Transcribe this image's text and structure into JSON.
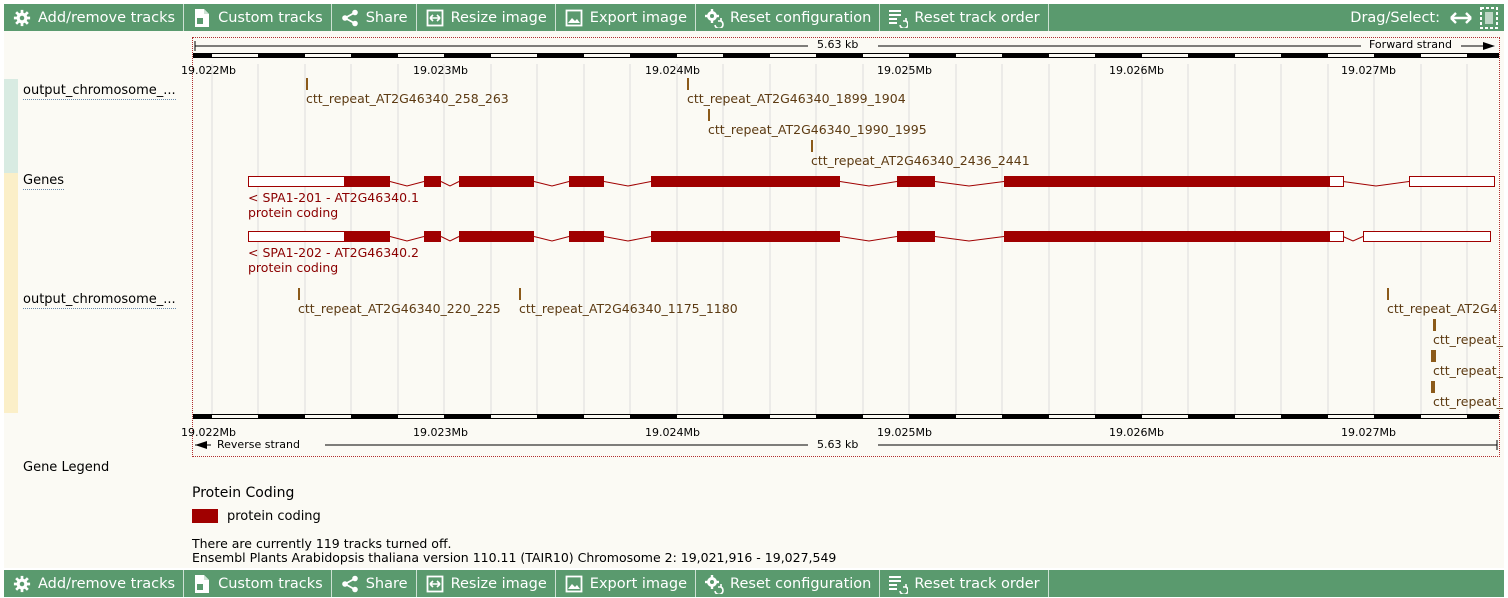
{
  "toolbar": {
    "items": [
      {
        "label": "Add/remove tracks",
        "icon": "gear-icon"
      },
      {
        "label": "Custom tracks",
        "icon": "file-icon"
      },
      {
        "label": "Share",
        "icon": "share-icon"
      },
      {
        "label": "Resize image",
        "icon": "resize-icon"
      },
      {
        "label": "Export image",
        "icon": "image-icon"
      },
      {
        "label": "Reset configuration",
        "icon": "reset-config-icon"
      },
      {
        "label": "Reset track order",
        "icon": "reset-order-icon"
      }
    ],
    "drag_select_label": "Drag/Select:"
  },
  "ruler": {
    "length_label": "5.63 kb",
    "forward_strand": "Forward strand",
    "reverse_strand": "Reverse strand",
    "ticks": [
      "19.022Mb",
      "19.023Mb",
      "19.024Mb",
      "19.025Mb",
      "19.026Mb",
      "19.027Mb"
    ]
  },
  "tracks": {
    "output_top": "output_chromosome_...",
    "genes": "Genes",
    "output_bottom": "output_chromosome_..."
  },
  "features_top": [
    "ctt_repeat_AT2G46340_258_263",
    "ctt_repeat_AT2G46340_1899_1904",
    "ctt_repeat_AT2G46340_1990_1995",
    "ctt_repeat_AT2G46340_2436_2441"
  ],
  "features_bottom": [
    "ctt_repeat_AT2G46340_220_225",
    "ctt_repeat_AT2G46340_1175_1180",
    "ctt_repeat_AT2G4",
    "ctt_repeat_",
    "ctt_repeat_",
    "ctt_repeat_"
  ],
  "genes": [
    {
      "name": "< SPA1-201 - AT2G46340.1",
      "biotype": "protein coding"
    },
    {
      "name": "< SPA1-202 - AT2G46340.2",
      "biotype": "protein coding"
    }
  ],
  "legend": {
    "title": "Gene Legend",
    "section": "Protein Coding",
    "item": "protein coding",
    "color": "#a00000"
  },
  "footer": {
    "tracks_off": "There are currently 119 tracks turned off.",
    "version": "Ensembl Plants Arabidopsis thaliana version 110.11 (TAIR10) Chromosome 2: 19,021,916 - 19,027,549"
  },
  "colors": {
    "toolbar": "#5a9a6e",
    "gene": "#a00000",
    "feature": "#8b5a1a"
  }
}
